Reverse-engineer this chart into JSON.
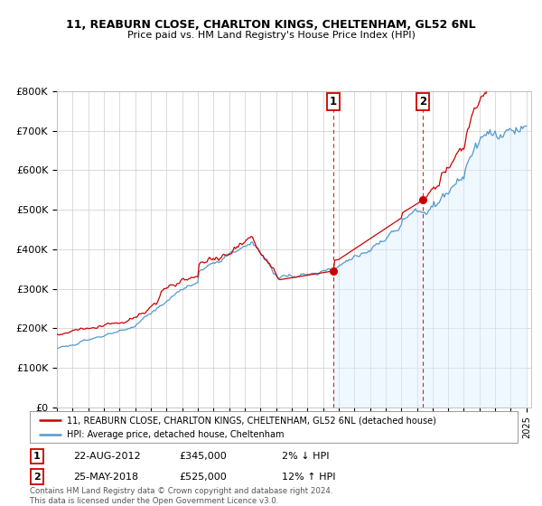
{
  "title1": "11, REABURN CLOSE, CHARLTON KINGS, CHELTENHAM, GL52 6NL",
  "title2": "Price paid vs. HM Land Registry's House Price Index (HPI)",
  "ylim": [
    0,
    800000
  ],
  "yticks": [
    0,
    100000,
    200000,
    300000,
    400000,
    500000,
    600000,
    700000,
    800000
  ],
  "ytick_labels": [
    "£0",
    "£100K",
    "£200K",
    "£300K",
    "£400K",
    "£500K",
    "£600K",
    "£700K",
    "£800K"
  ],
  "xlim_start": 1995,
  "xlim_end": 2025.3,
  "house_color": "#cc0000",
  "hpi_color": "#5599cc",
  "hpi_fill_color": "#ddeeff",
  "sale1_year": 2012.64,
  "sale1_price": 345000,
  "sale1_date": "22-AUG-2012",
  "sale1_hpi_diff": "2% ↓ HPI",
  "sale1_label": "1",
  "sale2_year": 2018.39,
  "sale2_price": 525000,
  "sale2_date": "25-MAY-2018",
  "sale2_hpi_diff": "12% ↑ HPI",
  "sale2_label": "2",
  "legend_house": "11, REABURN CLOSE, CHARLTON KINGS, CHELTENHAM, GL52 6NL (detached house)",
  "legend_hpi": "HPI: Average price, detached house, Cheltenham",
  "footnote": "Contains HM Land Registry data © Crown copyright and database right 2024.\nThis data is licensed under the Open Government Licence v3.0.",
  "background_color": "#ffffff",
  "grid_color": "#cccccc"
}
